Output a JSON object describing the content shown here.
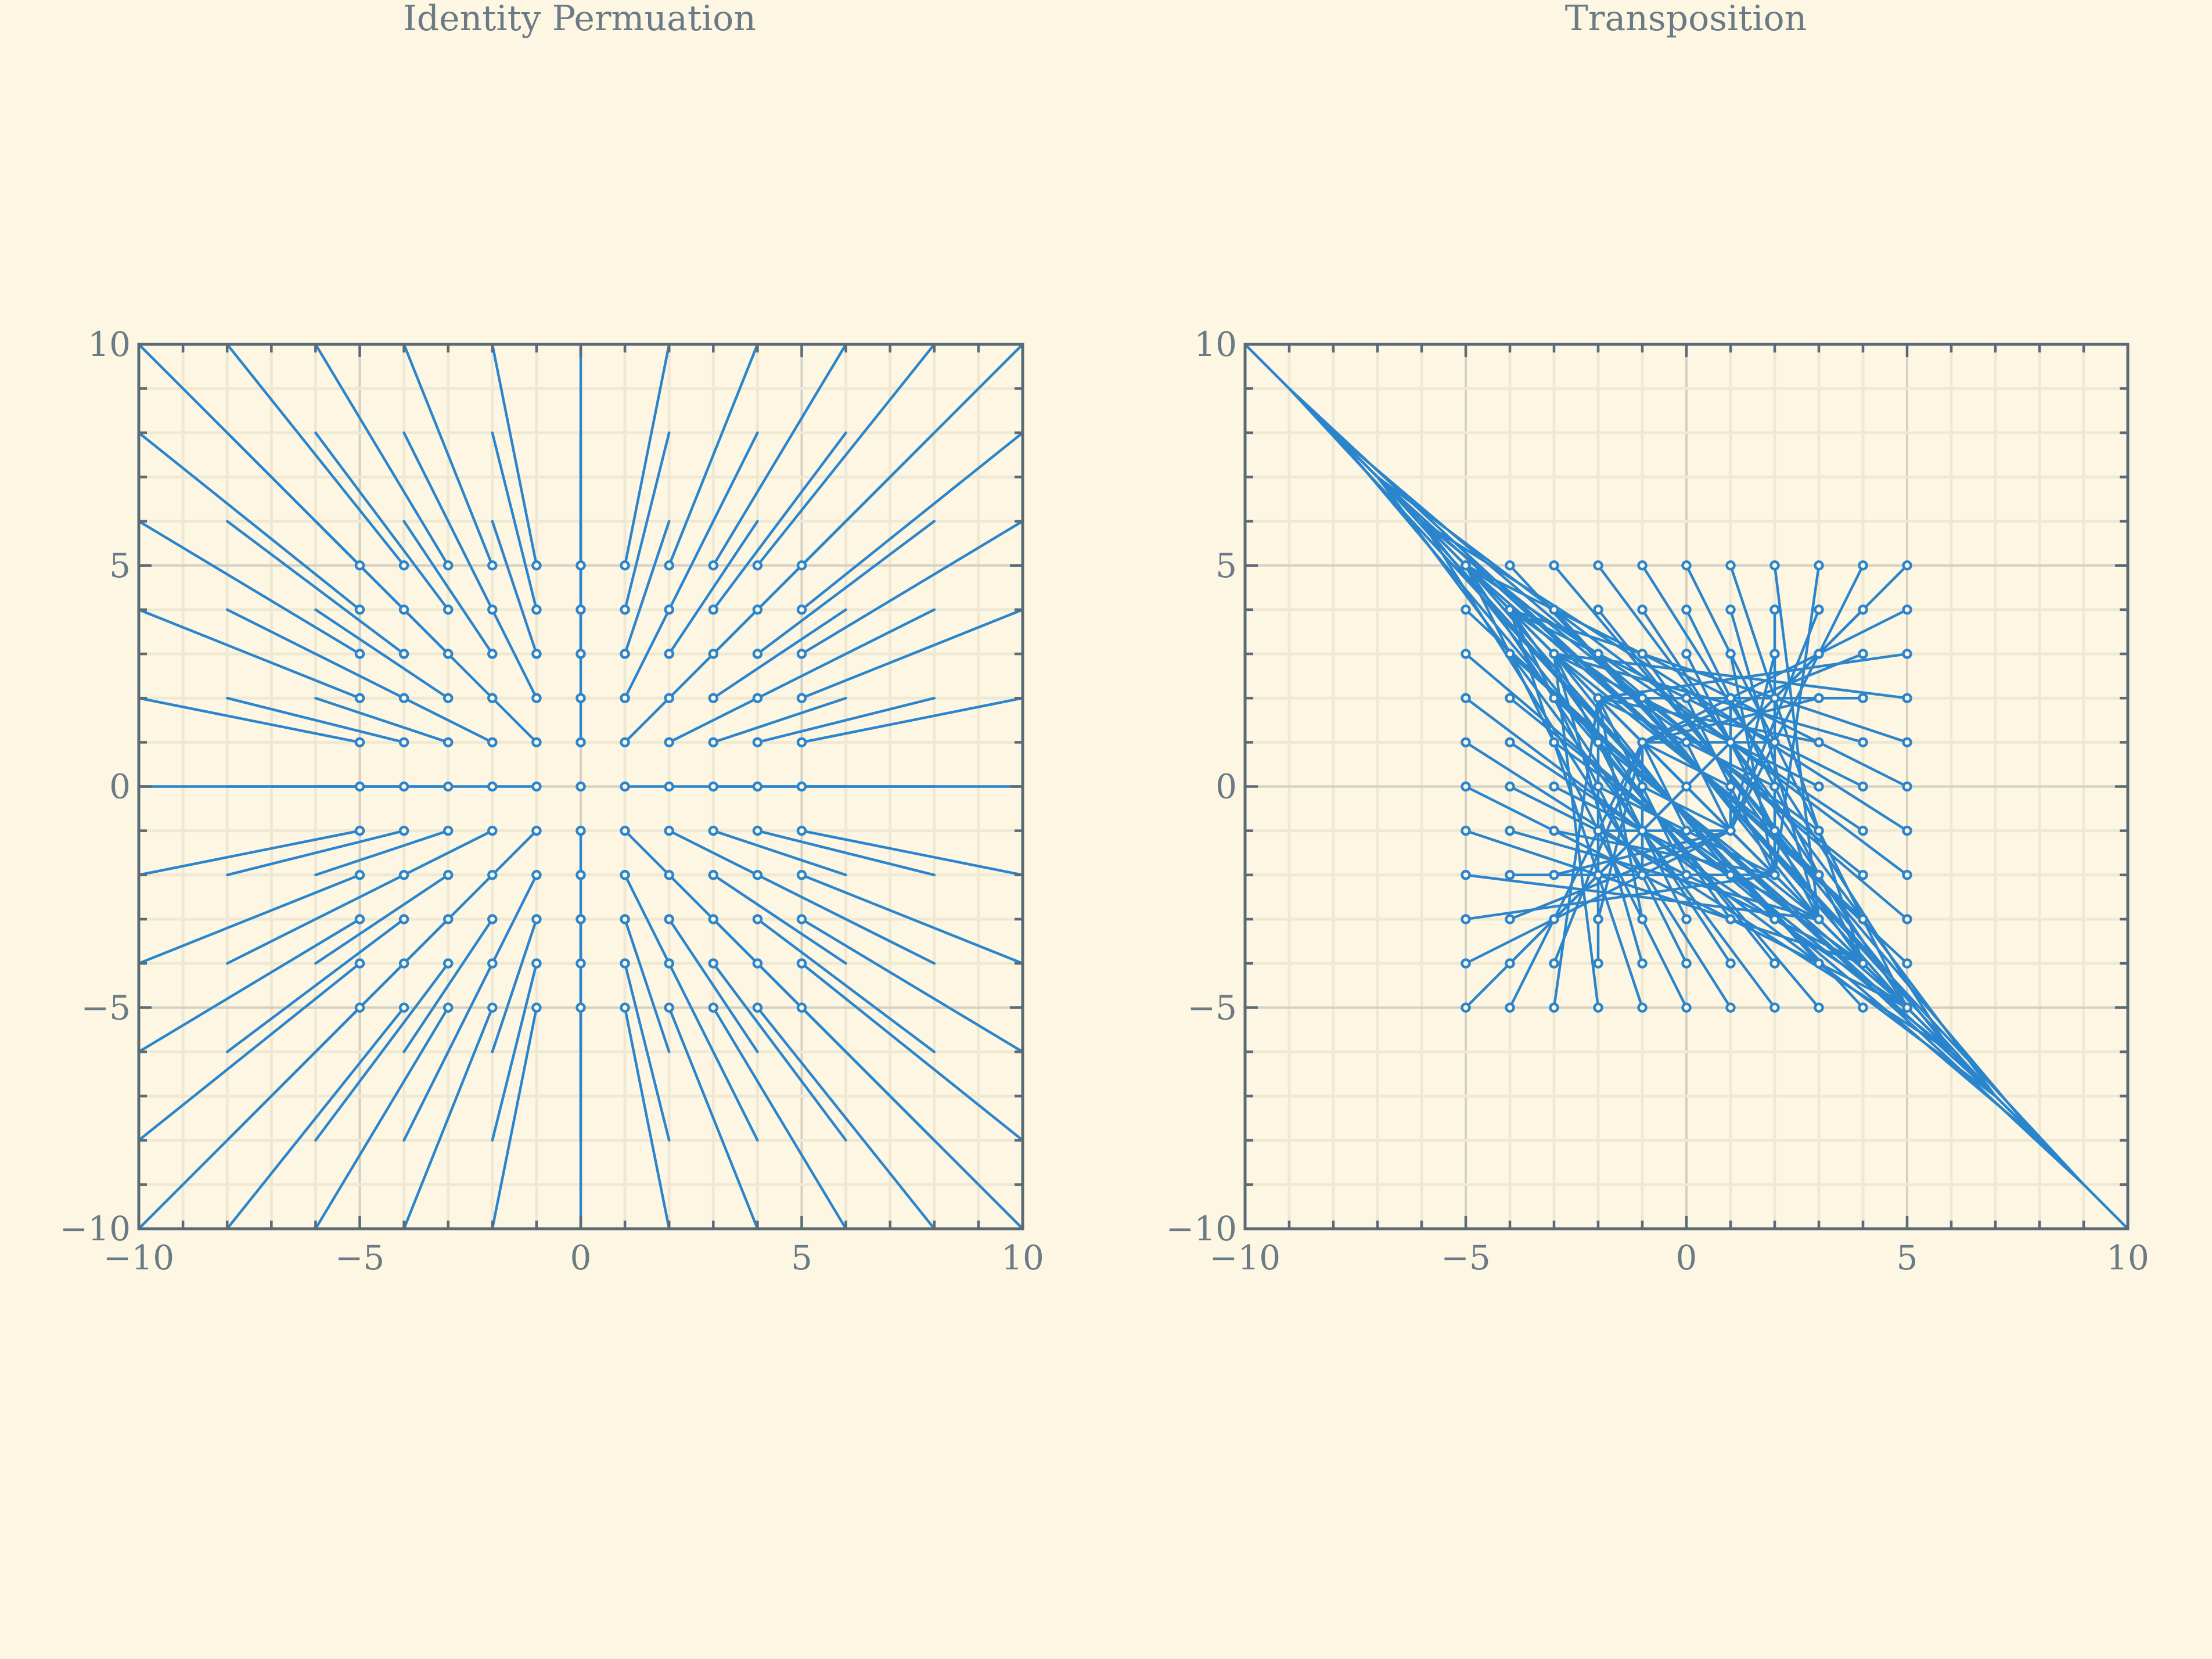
{
  "theme": {
    "background": "#fdf6e3",
    "series_color": "#2a85cc",
    "text_color": "#6b7b86"
  },
  "chart_data": [
    {
      "type": "line",
      "title": "Identity Permuation",
      "xlim": [
        -10,
        10
      ],
      "ylim": [
        -10,
        10
      ],
      "xticks": [
        "−10",
        "−5",
        "0",
        "5",
        "10"
      ],
      "yticks": [
        "−10",
        "−5",
        "0",
        "5",
        "10"
      ],
      "grid": true,
      "legend": "none",
      "point_grid": {
        "x": [
          -5,
          5
        ],
        "y": [
          -5,
          5
        ],
        "step": 1
      },
      "mapping": "identity: each line runs from grid point (x, y) to (2x, 2y)"
    },
    {
      "type": "line",
      "title": "Transposition",
      "xlim": [
        -10,
        10
      ],
      "ylim": [
        -10,
        10
      ],
      "xticks": [
        "−10",
        "−5",
        "0",
        "5",
        "10"
      ],
      "yticks": [
        "−10",
        "−5",
        "0",
        "5",
        "10"
      ],
      "grid": true,
      "legend": "none",
      "point_grid": {
        "x": [
          -5,
          5
        ],
        "y": [
          -5,
          5
        ],
        "step": 1
      },
      "mapping": "transposition: each line runs from grid point (x, y) to (y - x, x - y)"
    }
  ]
}
